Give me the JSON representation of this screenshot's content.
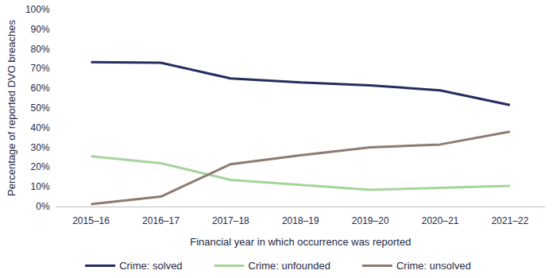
{
  "chart_data": {
    "type": "line",
    "x_label": "Financial year in which occurrence was reported",
    "y_label": "Percentage of reported DVO breaches",
    "categories": [
      "2015–16",
      "2016–17",
      "2017–18",
      "2018–19",
      "2019–20",
      "2020–21",
      "2021–22"
    ],
    "series": [
      {
        "name": "Crime: solved",
        "color": "#252c5e",
        "values": [
          73.3,
          73.0,
          65.0,
          63.0,
          61.5,
          59.0,
          51.5
        ]
      },
      {
        "name": "Crime: unfounded",
        "color": "#a5d49b",
        "values": [
          25.5,
          22.0,
          13.5,
          11.0,
          8.5,
          9.5,
          10.5
        ]
      },
      {
        "name": "Crime: unsolved",
        "color": "#8d7b70",
        "values": [
          1.2,
          5.0,
          21.5,
          26.0,
          30.0,
          31.5,
          38.0
        ]
      }
    ],
    "ylim": [
      0,
      100
    ],
    "yticks": [
      {
        "value": 0,
        "label": "0%"
      },
      {
        "value": 10,
        "label": "10%"
      },
      {
        "value": 20,
        "label": "20%"
      },
      {
        "value": 30,
        "label": "30%"
      },
      {
        "value": 40,
        "label": "40%"
      },
      {
        "value": 50,
        "label": "50%"
      },
      {
        "value": 60,
        "label": "60%"
      },
      {
        "value": 70,
        "label": "70%"
      },
      {
        "value": 80,
        "label": "80%"
      },
      {
        "value": 90,
        "label": "90%"
      },
      {
        "value": 100,
        "label": "100%"
      }
    ],
    "grid": false,
    "legend": "bottom"
  }
}
